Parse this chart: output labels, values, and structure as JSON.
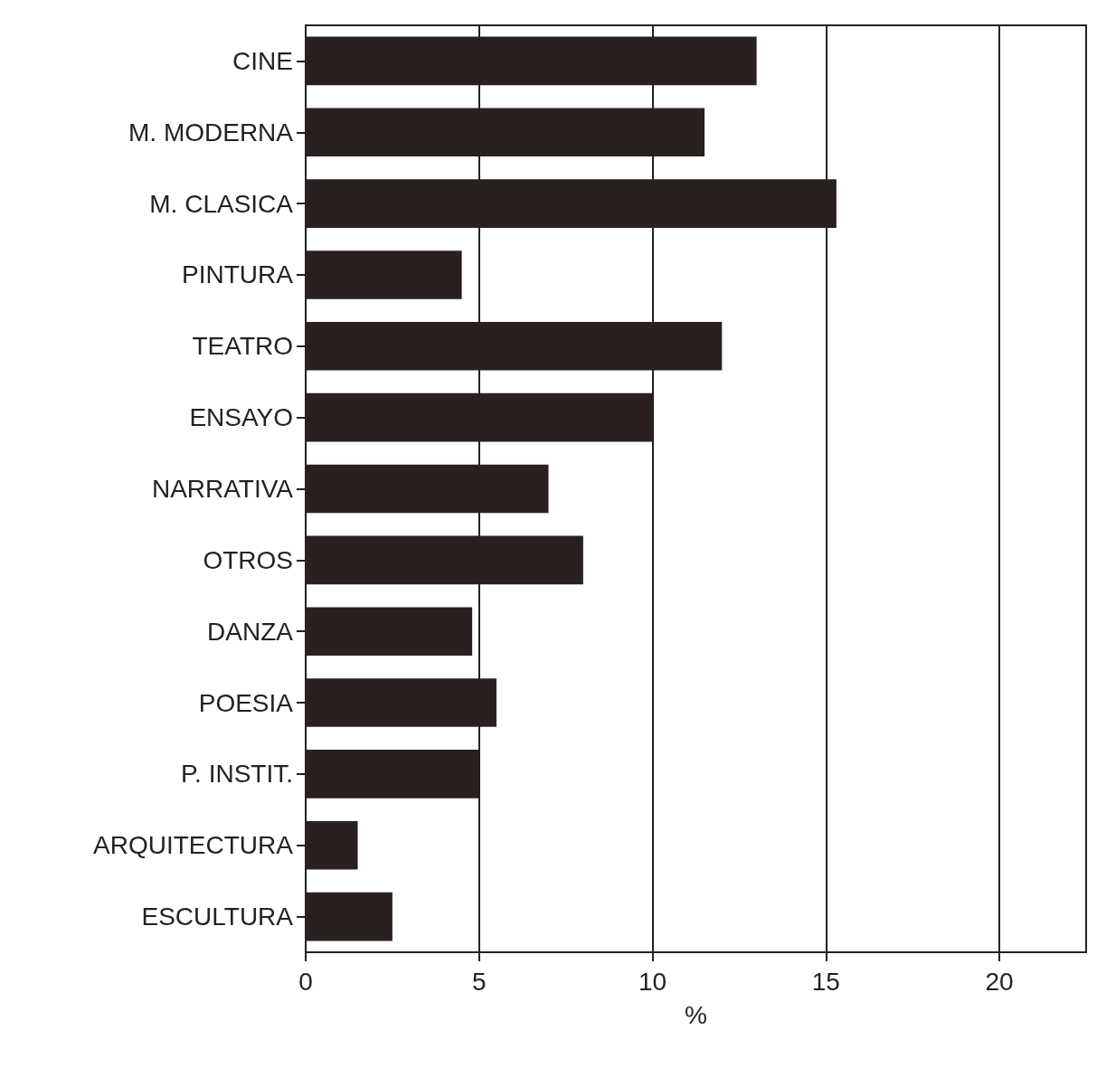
{
  "chart_data": {
    "type": "bar",
    "orientation": "horizontal",
    "xlabel": "%",
    "categories": [
      "CINE",
      "M. MODERNA",
      "M. CLASICA",
      "PINTURA",
      "TEATRO",
      "ENSAYO",
      "NARRATIVA",
      "OTROS",
      "DANZA",
      "POESIA",
      "P. INSTIT.",
      "ARQUITECTURA",
      "ESCULTURA"
    ],
    "values": [
      13.0,
      11.5,
      15.3,
      4.5,
      12.0,
      10.0,
      7.0,
      8.0,
      4.8,
      5.5,
      5.0,
      1.5,
      2.5
    ],
    "color": "#2b2020",
    "xlim": [
      0,
      22.5
    ],
    "xticks": [
      0,
      5,
      10,
      15,
      20
    ],
    "grid": "x"
  }
}
